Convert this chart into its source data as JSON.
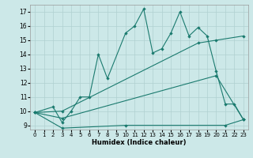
{
  "xlabel": "Humidex (Indice chaleur)",
  "xlim": [
    -0.5,
    23.5
  ],
  "ylim": [
    8.7,
    17.5
  ],
  "xticks": [
    0,
    1,
    2,
    3,
    4,
    5,
    6,
    7,
    8,
    9,
    10,
    11,
    12,
    13,
    14,
    15,
    16,
    17,
    18,
    19,
    20,
    21,
    22,
    23
  ],
  "yticks": [
    9,
    10,
    11,
    12,
    13,
    14,
    15,
    16,
    17
  ],
  "background_color": "#cce8e8",
  "grid_color": "#b0d0d0",
  "line_color": "#1a7a6e",
  "line1_x": [
    0,
    2,
    3,
    4,
    5,
    6,
    7,
    8,
    10,
    11,
    12,
    13,
    14,
    15,
    16,
    17,
    18,
    19,
    20,
    21,
    22,
    23
  ],
  "line1_y": [
    9.9,
    10.3,
    9.2,
    10.0,
    11.0,
    11.0,
    14.0,
    12.3,
    15.5,
    16.0,
    17.2,
    14.1,
    14.4,
    15.5,
    17.0,
    15.3,
    15.9,
    15.3,
    12.8,
    10.5,
    10.5,
    9.4
  ],
  "line2_x": [
    0,
    3,
    18,
    20,
    23
  ],
  "line2_y": [
    9.9,
    10.0,
    14.8,
    15.0,
    15.3
  ],
  "line3_x": [
    0,
    3,
    20,
    23
  ],
  "line3_y": [
    9.9,
    9.5,
    12.5,
    9.4
  ],
  "line4_x": [
    0,
    3,
    10,
    21,
    23
  ],
  "line4_y": [
    9.9,
    8.8,
    9.0,
    9.0,
    9.4
  ]
}
